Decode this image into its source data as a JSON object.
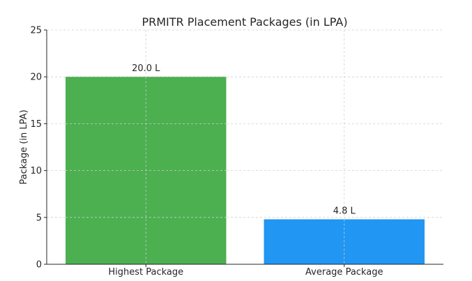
{
  "chart_data": {
    "type": "bar",
    "title": "PRMITR Placement Packages (in LPA)",
    "xlabel": "",
    "ylabel": "Package (in LPA)",
    "categories": [
      "Highest Package",
      "Average Package"
    ],
    "values": [
      20.0,
      4.8
    ],
    "data_labels": [
      "20.0 L",
      "4.8 L"
    ],
    "colors": [
      "#4caf50",
      "#2196f3"
    ],
    "ylim": [
      0,
      25
    ],
    "yticks": [
      0,
      5,
      10,
      15,
      20,
      25
    ],
    "grid": true,
    "legend": "none"
  }
}
